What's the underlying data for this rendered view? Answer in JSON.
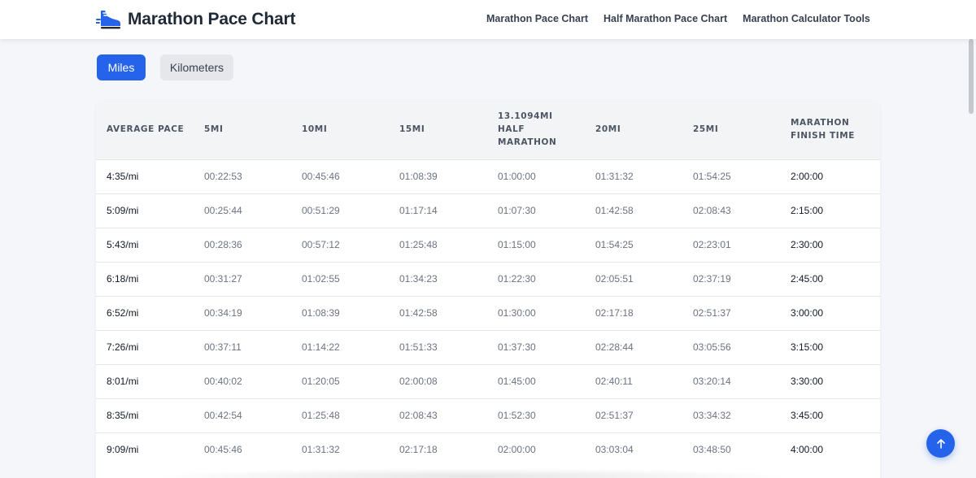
{
  "header": {
    "title": "Marathon Pace Chart",
    "logo_icon": "running-shoe-icon",
    "nav": [
      {
        "label": "Marathon Pace Chart"
      },
      {
        "label": "Half Marathon Pace Chart"
      },
      {
        "label": "Marathon Calculator Tools"
      }
    ]
  },
  "unit_toggle": {
    "miles_label": "Miles",
    "kilometers_label": "Kilometers",
    "selected": "Miles"
  },
  "table": {
    "columns": [
      "AVERAGE PACE",
      "5MI",
      "10MI",
      "15MI",
      "13.1094MI HALF MARATHON",
      "20MI",
      "25MI",
      "MARATHON FINISH TIME"
    ],
    "rows": [
      [
        "4:35/mi",
        "00:22:53",
        "00:45:46",
        "01:08:39",
        "01:00:00",
        "01:31:32",
        "01:54:25",
        "2:00:00"
      ],
      [
        "5:09/mi",
        "00:25:44",
        "00:51:29",
        "01:17:14",
        "01:07:30",
        "01:42:58",
        "02:08:43",
        "2:15:00"
      ],
      [
        "5:43/mi",
        "00:28:36",
        "00:57:12",
        "01:25:48",
        "01:15:00",
        "01:54:25",
        "02:23:01",
        "2:30:00"
      ],
      [
        "6:18/mi",
        "00:31:27",
        "01:02:55",
        "01:34:23",
        "01:22:30",
        "02:05:51",
        "02:37:19",
        "2:45:00"
      ],
      [
        "6:52/mi",
        "00:34:19",
        "01:08:39",
        "01:42:58",
        "01:30:00",
        "02:17:18",
        "02:51:37",
        "3:00:00"
      ],
      [
        "7:26/mi",
        "00:37:11",
        "01:14:22",
        "01:51:33",
        "01:37:30",
        "02:28:44",
        "03:05:56",
        "3:15:00"
      ],
      [
        "8:01/mi",
        "00:40:02",
        "01:20:05",
        "02:00:08",
        "01:45:00",
        "02:40:11",
        "03:20:14",
        "3:30:00"
      ],
      [
        "8:35/mi",
        "00:42:54",
        "01:25:48",
        "02:08:43",
        "01:52:30",
        "02:51:37",
        "03:34:32",
        "3:45:00"
      ],
      [
        "9:09/mi",
        "00:45:46",
        "01:31:32",
        "02:17:18",
        "02:00:00",
        "03:03:04",
        "03:48:50",
        "4:00:00"
      ]
    ]
  },
  "scroll_to_top": {
    "icon": "arrow-up-icon"
  },
  "colors": {
    "accent": "#2563eb",
    "page_background": "#f4f6f9",
    "header_background": "#ffffff",
    "table_header_background": "#f3f4f6"
  }
}
